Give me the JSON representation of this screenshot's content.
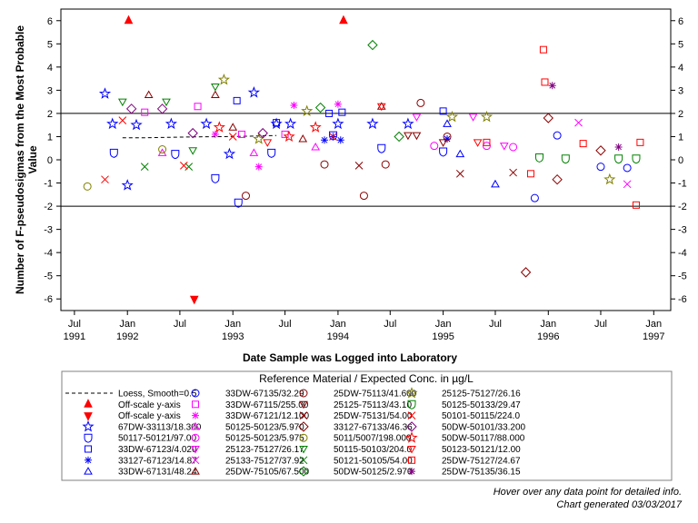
{
  "chart_data": {
    "type": "scatter",
    "xlabel": "Date Sample was Logged into Laboratory",
    "ylabel_lines": [
      "Number of F-pseudosigmas from the Most Probable",
      "Value"
    ],
    "ylim": [
      -6.5,
      6.5
    ],
    "y_ticks": [
      -6,
      -5,
      -4,
      -3,
      -2,
      -1,
      0,
      1,
      2,
      3,
      4,
      5,
      6
    ],
    "reference_lines": [
      2,
      -2
    ],
    "xlim": [
      "1991-05-15",
      "1997-03-01"
    ],
    "x_ticks": [
      {
        "date": "1991-07-01",
        "label": "Jul",
        "year": "1991"
      },
      {
        "date": "1992-01-01",
        "label": "Jan",
        "year": "1992"
      },
      {
        "date": "1992-07-01",
        "label": "Jul",
        "year": ""
      },
      {
        "date": "1993-01-01",
        "label": "Jan",
        "year": "1993"
      },
      {
        "date": "1993-07-01",
        "label": "Jul",
        "year": ""
      },
      {
        "date": "1994-01-01",
        "label": "Jan",
        "year": "1994"
      },
      {
        "date": "1994-07-01",
        "label": "Jul",
        "year": ""
      },
      {
        "date": "1995-01-01",
        "label": "Jan",
        "year": "1995"
      },
      {
        "date": "1995-07-01",
        "label": "Jul",
        "year": ""
      },
      {
        "date": "1996-01-01",
        "label": "Jan",
        "year": "1996"
      },
      {
        "date": "1996-07-01",
        "label": "Jul",
        "year": ""
      },
      {
        "date": "1997-01-01",
        "label": "Jan",
        "year": "1997"
      }
    ],
    "legend_title": "Reference Material / Expected Conc. in µg/L",
    "legend_placement": "bottom",
    "loess": {
      "name": "Loess, Smooth=0.5",
      "color": "#000000",
      "points": [
        [
          "1991-12-15",
          0.95
        ],
        [
          "1992-03-01",
          0.95
        ],
        [
          "1992-06-01",
          0.97
        ],
        [
          "1992-09-01",
          0.99
        ],
        [
          "1992-12-01",
          1.0
        ],
        [
          "1993-03-01",
          1.02
        ],
        [
          "1993-06-01",
          1.05
        ]
      ]
    },
    "offscale": [
      {
        "name": "Off-scale y-axis",
        "direction": "up",
        "color": "#ff0000"
      },
      {
        "name": "Off-scale y-axis",
        "direction": "down",
        "color": "#ff0000"
      }
    ],
    "offscale_points": [
      {
        "date": "1992-01-05",
        "dir": "up"
      },
      {
        "date": "1992-08-20",
        "dir": "down"
      },
      {
        "date": "1994-01-20",
        "dir": "up"
      }
    ],
    "series": [
      {
        "name": "67DW-33113/18.300",
        "symbol": "star",
        "color": "#0000ff",
        "points": [
          [
            "1991-10-15",
            2.85
          ],
          [
            "1991-11-10",
            1.55
          ],
          [
            "1992-01-01",
            -1.1
          ],
          [
            "1992-02-01",
            1.5
          ],
          [
            "1992-06-01",
            1.55
          ],
          [
            "1992-10-01",
            1.55
          ],
          [
            "1992-12-20",
            0.25
          ],
          [
            "1993-03-15",
            2.9
          ],
          [
            "1993-06-01",
            1.55
          ],
          [
            "1993-07-20",
            1.55
          ],
          [
            "1994-01-01",
            1.55
          ],
          [
            "1994-05-01",
            1.55
          ],
          [
            "1994-09-01",
            1.55
          ]
        ]
      },
      {
        "name": "50117-50121/97.00",
        "symbol": "shield",
        "color": "#0000ff",
        "points": [
          [
            "1991-11-15",
            0.3
          ],
          [
            "1992-06-15",
            0.25
          ],
          [
            "1992-11-01",
            -0.8
          ],
          [
            "1993-01-20",
            -1.85
          ],
          [
            "1993-05-15",
            0.3
          ],
          [
            "1993-12-15",
            1.05
          ],
          [
            "1994-06-01",
            0.5
          ],
          [
            "1995-01-01",
            0.35
          ]
        ]
      },
      {
        "name": "33DW-67123/4.020",
        "symbol": "square",
        "color": "#0000ff",
        "points": [
          [
            "1993-01-15",
            2.55
          ],
          [
            "1993-06-01",
            1.6
          ],
          [
            "1993-12-01",
            2.0
          ],
          [
            "1994-01-15",
            2.05
          ],
          [
            "1995-01-01",
            2.1
          ]
        ]
      },
      {
        "name": "33127-67123/14.87",
        "symbol": "asterisk",
        "color": "#0000ff",
        "points": [
          [
            "1993-11-15",
            0.85
          ],
          [
            "1993-12-15",
            1.0
          ],
          [
            "1994-01-10",
            0.85
          ],
          [
            "1995-01-15",
            0.9
          ]
        ]
      },
      {
        "name": "33DW-67131/48.24",
        "symbol": "triangle",
        "color": "#0000ff",
        "points": [
          [
            "1995-01-15",
            1.55
          ],
          [
            "1995-03-01",
            0.25
          ],
          [
            "1995-07-01",
            -1.05
          ]
        ]
      },
      {
        "name": "33DW-67135/32.29",
        "symbol": "circle",
        "color": "#0000ff",
        "points": [
          [
            "1995-11-15",
            -1.65
          ],
          [
            "1996-02-01",
            1.05
          ],
          [
            "1996-07-01",
            -0.3
          ],
          [
            "1996-10-01",
            -0.35
          ]
        ]
      },
      {
        "name": "33DW-67115/255.00",
        "symbol": "square",
        "color": "#ff00ff",
        "points": [
          [
            "1992-03-01",
            2.05
          ],
          [
            "1992-09-01",
            2.3
          ],
          [
            "1993-02-01",
            1.1
          ],
          [
            "1993-07-01",
            1.1
          ]
        ]
      },
      {
        "name": "33DW-67121/12.100",
        "symbol": "asterisk",
        "color": "#ff00ff",
        "points": [
          [
            "1992-11-01",
            1.1
          ],
          [
            "1993-04-01",
            -0.3
          ],
          [
            "1993-08-01",
            2.35
          ],
          [
            "1994-01-01",
            2.4
          ]
        ]
      },
      {
        "name": "50125-50123/5.970",
        "symbol": "triangle",
        "color": "#ff00ff",
        "points": [
          [
            "1992-05-01",
            0.3
          ],
          [
            "1993-03-15",
            0.3
          ],
          [
            "1993-10-15",
            0.55
          ]
        ]
      },
      {
        "name": "50125-50123/5.975",
        "symbol": "circle",
        "color": "#ff00ff",
        "points": [
          [
            "1994-12-01",
            0.6
          ],
          [
            "1995-06-01",
            0.6
          ],
          [
            "1995-09-01",
            0.55
          ]
        ]
      },
      {
        "name": "25123-75127/26.17",
        "symbol": "triangle-down",
        "color": "#ff00ff",
        "points": [
          [
            "1994-10-01",
            1.85
          ],
          [
            "1995-04-15",
            1.85
          ],
          [
            "1995-08-01",
            0.6
          ]
        ]
      },
      {
        "name": "25133-75127/37.92",
        "symbol": "x",
        "color": "#ff00ff",
        "points": [
          [
            "1996-04-15",
            1.6
          ],
          [
            "1996-10-01",
            -1.05
          ]
        ]
      },
      {
        "name": "25DW-75105/67.500",
        "symbol": "triangle",
        "color": "#8b0000",
        "points": [
          [
            "1992-03-15",
            2.8
          ],
          [
            "1992-11-01",
            2.8
          ],
          [
            "1993-01-01",
            1.4
          ],
          [
            "1993-09-01",
            0.9
          ],
          [
            "1994-06-01",
            2.3
          ]
        ]
      },
      {
        "name": "25DW-75113/41.600",
        "symbol": "circle",
        "color": "#8b0000",
        "points": [
          [
            "1993-02-15",
            -1.55
          ],
          [
            "1993-11-15",
            -0.2
          ],
          [
            "1994-04-01",
            -1.55
          ],
          [
            "1994-06-15",
            -0.2
          ],
          [
            "1994-10-15",
            2.45
          ],
          [
            "1995-01-15",
            1.0
          ]
        ]
      },
      {
        "name": "25125-75113/43.10",
        "symbol": "triangle-down",
        "color": "#8b0000",
        "points": [
          [
            "1994-09-01",
            1.05
          ],
          [
            "1994-10-01",
            1.05
          ],
          [
            "1995-01-01",
            0.75
          ]
        ]
      },
      {
        "name": "25DW-75131/54.00",
        "symbol": "x",
        "color": "#8b0000",
        "points": [
          [
            "1994-03-15",
            -0.25
          ],
          [
            "1995-03-01",
            -0.6
          ],
          [
            "1995-09-01",
            -0.55
          ]
        ]
      },
      {
        "name": "33127-67133/46.36",
        "symbol": "diamond",
        "color": "#8b0000",
        "points": [
          [
            "1995-10-15",
            -4.85
          ],
          [
            "1996-01-01",
            1.8
          ],
          [
            "1996-02-01",
            -0.85
          ],
          [
            "1996-07-01",
            0.4
          ]
        ]
      },
      {
        "name": "5011/5007/198.000",
        "symbol": "circle",
        "color": "#808000",
        "points": [
          [
            "1991-08-15",
            -1.15
          ],
          [
            "1992-05-01",
            0.45
          ]
        ]
      },
      {
        "name": "50115-50103/204.0",
        "symbol": "triangle-down",
        "color": "#008000",
        "points": [
          [
            "1991-12-15",
            2.5
          ],
          [
            "1992-05-15",
            2.5
          ],
          [
            "1992-08-15",
            0.4
          ],
          [
            "1992-11-01",
            3.15
          ]
        ]
      },
      {
        "name": "50121-50105/54.00",
        "symbol": "x",
        "color": "#008000",
        "points": [
          [
            "1992-03-01",
            -0.3
          ],
          [
            "1992-08-01",
            -0.3
          ]
        ]
      },
      {
        "name": "50DW-50125/2.970",
        "symbol": "diamond",
        "color": "#008000",
        "points": [
          [
            "1993-11-01",
            2.25
          ],
          [
            "1994-05-01",
            4.95
          ],
          [
            "1994-08-01",
            1.0
          ]
        ]
      },
      {
        "name": "25125-75127/26.16",
        "symbol": "star",
        "color": "#808000",
        "points": [
          [
            "1992-12-01",
            3.45
          ],
          [
            "1993-04-01",
            0.9
          ],
          [
            "1993-09-15",
            2.1
          ],
          [
            "1995-02-01",
            1.85
          ],
          [
            "1995-06-01",
            1.85
          ],
          [
            "1996-08-01",
            -0.85
          ]
        ]
      },
      {
        "name": "50125-50133/29.47",
        "symbol": "shield",
        "color": "#008000",
        "points": [
          [
            "1995-12-01",
            0.1
          ],
          [
            "1996-03-01",
            0.05
          ],
          [
            "1996-09-01",
            0.05
          ],
          [
            "1996-11-01",
            0.05
          ]
        ]
      },
      {
        "name": "50101-50115/224.0",
        "symbol": "x",
        "color": "#ff0000",
        "points": [
          [
            "1991-10-15",
            -0.85
          ],
          [
            "1991-12-15",
            1.7
          ],
          [
            "1992-07-15",
            -0.25
          ],
          [
            "1993-01-01",
            1.0
          ],
          [
            "1993-12-15",
            1.0
          ]
        ]
      },
      {
        "name": "50DW-50101/33.200",
        "symbol": "diamond",
        "color": "#800080",
        "points": [
          [
            "1992-01-15",
            2.2
          ],
          [
            "1992-05-01",
            2.2
          ],
          [
            "1992-08-15",
            1.15
          ],
          [
            "1993-04-15",
            1.15
          ]
        ]
      },
      {
        "name": "50DW-50117/88.000",
        "symbol": "star",
        "color": "#ff0000",
        "points": [
          [
            "1992-11-15",
            1.4
          ],
          [
            "1993-07-15",
            1.0
          ],
          [
            "1993-10-15",
            1.4
          ]
        ]
      },
      {
        "name": "50123-50121/12.00",
        "symbol": "triangle-down",
        "color": "#ff0000",
        "points": [
          [
            "1993-05-01",
            0.75
          ],
          [
            "1994-06-01",
            2.3
          ],
          [
            "1995-05-01",
            0.75
          ]
        ]
      },
      {
        "name": "25DW-75127/24.67",
        "symbol": "square",
        "color": "#ff0000",
        "points": [
          [
            "1995-06-01",
            0.75
          ],
          [
            "1995-11-01",
            -0.6
          ],
          [
            "1995-12-15",
            4.75
          ],
          [
            "1995-12-20",
            3.35
          ],
          [
            "1996-05-01",
            0.7
          ],
          [
            "1996-11-01",
            -1.95
          ],
          [
            "1996-11-15",
            0.75
          ]
        ]
      },
      {
        "name": "25DW-75135/36.15",
        "symbol": "asterisk",
        "color": "#800080",
        "points": [
          [
            "1996-01-15",
            3.2
          ],
          [
            "1996-09-01",
            0.55
          ]
        ]
      }
    ]
  },
  "footer": {
    "hover_note": "Hover over any data point for detailed info.",
    "generated": "Chart generated 03/03/2017"
  }
}
